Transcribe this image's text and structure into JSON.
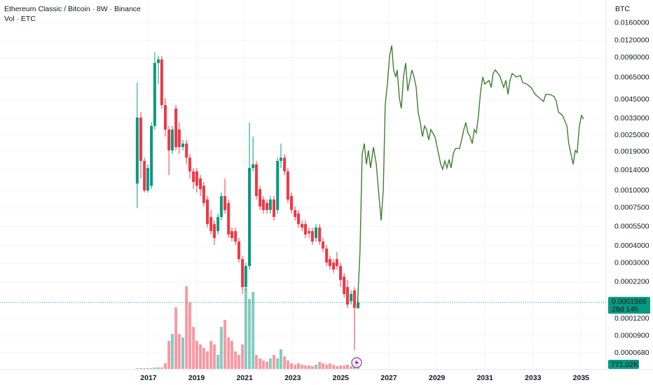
{
  "chart_data": {
    "type": "candlestick",
    "title": "Ethereum Classic / Bitcoin · 8W · Binance",
    "subtitle": "Vol · ETC",
    "y_axis_label": "BTC",
    "log_scale": true,
    "grid": true,
    "up_color": "#089981",
    "down_color": "#f23645",
    "xlim": [
      2010.82,
      2036.04
    ],
    "xticks": [
      2017,
      2019,
      2021,
      2023,
      2025,
      2027,
      2029,
      2031,
      2033,
      2035
    ],
    "ylim": [
      5.15e-05,
      0.0234
    ],
    "yticks": [
      {
        "value": 0.016,
        "label": "0.0160000"
      },
      {
        "value": 0.012,
        "label": "0.0120000"
      },
      {
        "value": 0.009,
        "label": "0.0090000"
      },
      {
        "value": 0.0065,
        "label": "0.0065000"
      },
      {
        "value": 0.0045,
        "label": "0.0045000"
      },
      {
        "value": 0.0033,
        "label": "0.0033000"
      },
      {
        "value": 0.0025,
        "label": "0.0025000"
      },
      {
        "value": 0.0019,
        "label": "0.0019000"
      },
      {
        "value": 0.0014,
        "label": "0.0014000"
      },
      {
        "value": 0.001,
        "label": "0.0010000"
      },
      {
        "value": 0.00075,
        "label": "0.0007500"
      },
      {
        "value": 0.00055,
        "label": "0.0005500"
      },
      {
        "value": 0.0004,
        "label": "0.0004000"
      },
      {
        "value": 0.0003,
        "label": "0.0003000"
      },
      {
        "value": 0.00022,
        "label": "0.0002200"
      },
      {
        "value": 0.00012,
        "label": "0.0001200"
      },
      {
        "value": 9e-05,
        "label": "0.0000900"
      },
      {
        "value": 6.8e-05,
        "label": "0.0000680"
      }
    ],
    "candles": {
      "x": [
        2016.53,
        2016.68,
        2016.83,
        2016.97,
        2017.12,
        2017.26,
        2017.41,
        2017.55,
        2017.7,
        2017.85,
        2017.99,
        2018.14,
        2018.28,
        2018.43,
        2018.58,
        2018.72,
        2018.87,
        2019.01,
        2019.16,
        2019.3,
        2019.45,
        2019.6,
        2019.74,
        2019.89,
        2020.03,
        2020.18,
        2020.33,
        2020.47,
        2020.62,
        2020.76,
        2020.91,
        2021.05,
        2021.2,
        2021.35,
        2021.49,
        2021.64,
        2021.78,
        2021.93,
        2022.07,
        2022.22,
        2022.37,
        2022.51,
        2022.66,
        2022.8,
        2022.95,
        2023.1,
        2023.24,
        2023.39,
        2023.53,
        2023.68,
        2023.82,
        2023.97,
        2024.12,
        2024.26,
        2024.41,
        2024.55,
        2024.7,
        2024.84,
        2024.99,
        2025.14,
        2025.28,
        2025.43,
        2025.57,
        2025.72
      ],
      "open": [
        0.00112,
        0.00334,
        0.00163,
        0.001,
        0.00108,
        0.00291,
        0.00825,
        0.00875,
        0.00411,
        0.00274,
        0.00194,
        0.00388,
        0.00274,
        0.00205,
        0.00217,
        0.00172,
        0.00137,
        0.00137,
        0.00122,
        0.00108,
        0.00086,
        0.000644,
        0.000573,
        0.00051,
        0.000644,
        0.000911,
        0.000812,
        0.00051,
        0.00051,
        0.000429,
        0.000321,
        0.000202,
        0.000286,
        0.00145,
        0.00154,
        0.00102,
        0.00086,
        0.000812,
        0.000723,
        0.00086,
        0.000723,
        0.00163,
        0.00172,
        0.00137,
        0.000911,
        0.000723,
        0.000682,
        0.000573,
        0.000573,
        0.00051,
        0.00051,
        0.000455,
        0.000541,
        0.000429,
        0.000382,
        0.000321,
        0.000303,
        0.000321,
        0.000286,
        0.00024,
        0.000202,
        0.00016,
        0.000191,
        0.000143
      ],
      "high": [
        0.00596,
        0.00366,
        0.00172,
        0.00154,
        0.00308,
        0.00982,
        0.00927,
        0.00927,
        0.00462,
        0.00291,
        0.00291,
        0.00411,
        0.00308,
        0.00231,
        0.00231,
        0.00183,
        0.00145,
        0.00145,
        0.00129,
        0.00115,
        0.000911,
        0.000723,
        0.000607,
        0.000682,
        0.000966,
        0.00122,
        0.00086,
        0.000541,
        0.000541,
        0.000455,
        0.00034,
        0.000303,
        0.00308,
        0.00244,
        0.00163,
        0.00108,
        0.000911,
        0.00086,
        0.000911,
        0.000911,
        0.00172,
        0.00217,
        0.00183,
        0.00145,
        0.000966,
        0.000766,
        0.000723,
        0.000607,
        0.000607,
        0.000541,
        0.000541,
        0.000573,
        0.000573,
        0.000455,
        0.000405,
        0.00034,
        0.000321,
        0.000361,
        0.000303,
        0.000255,
        0.000227,
        0.000191,
        0.000202,
        0.00017
      ],
      "low": [
        0.000748,
        0.00122,
        0.000966,
        0.000966,
        0.00102,
        0.00274,
        0.00582,
        0.00388,
        0.00244,
        0.00129,
        0.00183,
        0.00194,
        0.00183,
        0.00194,
        0.00154,
        0.00122,
        0.00102,
        0.000966,
        0.000911,
        0.000766,
        0.000541,
        0.000482,
        0.000405,
        0.000482,
        0.000607,
        0.000682,
        0.000455,
        0.000429,
        0.000405,
        0.000303,
        0.00018,
        0.000191,
        0.00027,
        0.00137,
        0.00086,
        0.000723,
        0.000682,
        0.000682,
        0.000682,
        0.000607,
        0.000682,
        0.00145,
        0.00129,
        0.000812,
        0.000682,
        0.000607,
        0.000541,
        0.00051,
        0.000455,
        0.000455,
        0.000405,
        0.000429,
        0.000405,
        0.000361,
        0.000286,
        0.00027,
        0.000255,
        0.00027,
        0.000202,
        0.00017,
        0.000143,
        0.000151,
        7.11e-05,
        0.00014
      ],
      "close": [
        0.00334,
        0.00163,
        0.001,
        0.00145,
        0.00291,
        0.00825,
        0.00875,
        0.00411,
        0.00274,
        0.00194,
        0.00274,
        0.00205,
        0.00205,
        0.00217,
        0.00172,
        0.00137,
        0.00115,
        0.00108,
        0.00102,
        0.000812,
        0.000573,
        0.00051,
        0.000455,
        0.000644,
        0.000911,
        0.000723,
        0.000482,
        0.000455,
        0.000429,
        0.000321,
        0.000202,
        0.000286,
        0.00145,
        0.00154,
        0.000911,
        0.000766,
        0.000723,
        0.000723,
        0.00086,
        0.000644,
        0.00163,
        0.00172,
        0.00137,
        0.00086,
        0.000723,
        0.000644,
        0.000573,
        0.000541,
        0.000482,
        0.000493,
        0.000429,
        0.000541,
        0.000429,
        0.000382,
        0.000303,
        0.000286,
        0.00027,
        0.000286,
        0.000227,
        0.00018,
        0.000151,
        0.00018,
        0.000143,
        0.0001565
      ]
    },
    "volume": {
      "values": [
        154200,
        154200,
        154200,
        154200,
        154200,
        308400,
        308400,
        308400,
        1233600,
        6168000,
        7710000,
        13569600,
        7710000,
        6939000,
        18195600,
        14649000,
        9252000,
        6168000,
        5397000,
        4626000,
        3855000,
        6168000,
        5397000,
        3084000,
        9252000,
        10794000,
        6939000,
        6168000,
        3855000,
        3084000,
        5397000,
        17733000,
        15420000,
        16962000,
        3084000,
        2313000,
        1850400,
        1542000,
        2313000,
        3084000,
        2313000,
        4317600,
        2775600,
        1850400,
        1233600,
        925200,
        1233600,
        925200,
        771000,
        771000,
        616800,
        925200,
        1542000,
        1233600,
        925200,
        1233600,
        925200,
        616800,
        771000,
        771000,
        925200,
        616800,
        771000,
        771020
      ],
      "value_labels": [
        null,
        null,
        null,
        null,
        null,
        null,
        null,
        null,
        null,
        null,
        null,
        null,
        null,
        null,
        null,
        null,
        null,
        null,
        null,
        null,
        null,
        null,
        null,
        null,
        null,
        null,
        null,
        null,
        null,
        null,
        null,
        null,
        null,
        null,
        null,
        null,
        null,
        null,
        null,
        null,
        null,
        null,
        null,
        null,
        null,
        null,
        null,
        null,
        null,
        null,
        null,
        null,
        null,
        null,
        null,
        null,
        null,
        null,
        null,
        null,
        null,
        null,
        null,
        "771.02K"
      ]
    },
    "projection": {
      "color": "#3f7d32",
      "x": [
        2025.69,
        2025.8,
        2025.89,
        2025.98,
        2026.07,
        2026.15,
        2026.24,
        2026.36,
        2026.48,
        2026.59,
        2026.68,
        2026.77,
        2026.85,
        2026.94,
        2027.03,
        2027.12,
        2027.2,
        2027.29,
        2027.35,
        2027.44,
        2027.52,
        2027.61,
        2027.7,
        2027.79,
        2027.87,
        2027.96,
        2028.05,
        2028.14,
        2028.22,
        2028.31,
        2028.4,
        2028.49,
        2028.57,
        2028.66,
        2028.75,
        2028.92,
        2029.04,
        2029.16,
        2029.24,
        2029.33,
        2029.42,
        2029.51,
        2029.59,
        2029.68,
        2029.77,
        2029.94,
        2030.03,
        2030.12,
        2030.21,
        2030.29,
        2030.38,
        2030.47,
        2030.56,
        2030.64,
        2030.73,
        2030.82,
        2030.91,
        2030.99,
        2031.17,
        2031.26,
        2031.34,
        2031.43,
        2031.61,
        2031.78,
        2031.87,
        2031.96,
        2032.04,
        2032.13,
        2032.31,
        2032.48,
        2032.57,
        2032.74,
        2032.92,
        2033.09,
        2033.27,
        2033.44,
        2033.53,
        2033.71,
        2033.88,
        2033.97,
        2034.06,
        2034.23,
        2034.41,
        2034.49,
        2034.58,
        2034.67,
        2034.76,
        2034.84,
        2034.93,
        2035.02,
        2035.1
      ],
      "values": [
        0.000143,
        0.000361,
        0.00183,
        0.00217,
        0.00154,
        0.00194,
        0.00145,
        0.00205,
        0.00154,
        0.000911,
        0.000607,
        0.00102,
        0.00411,
        0.00582,
        0.00927,
        0.011,
        0.00735,
        0.00654,
        0.00735,
        0.00462,
        0.00388,
        0.00654,
        0.00825,
        0.00519,
        0.00617,
        0.00735,
        0.00654,
        0.0055,
        0.00366,
        0.00308,
        0.00244,
        0.00291,
        0.00274,
        0.00231,
        0.00274,
        0.00244,
        0.00194,
        0.00154,
        0.00142,
        0.00163,
        0.00145,
        0.00167,
        0.00145,
        0.00183,
        0.002,
        0.002,
        0.00231,
        0.00274,
        0.00308,
        0.00259,
        0.00244,
        0.00217,
        0.00274,
        0.00259,
        0.00346,
        0.00519,
        0.00654,
        0.00582,
        0.00617,
        0.0055,
        0.00693,
        0.00735,
        0.0067,
        0.0055,
        0.00617,
        0.0049,
        0.00617,
        0.00693,
        0.00654,
        0.0067,
        0.00596,
        0.00582,
        0.0055,
        0.0049,
        0.00462,
        0.00436,
        0.0049,
        0.0049,
        0.00473,
        0.00436,
        0.00366,
        0.00346,
        0.00291,
        0.00217,
        0.00183,
        0.00154,
        0.00194,
        0.00187,
        0.00291,
        0.00346,
        0.00326
      ]
    },
    "last_price": 0.0001565,
    "countdown": "28d 14h"
  }
}
